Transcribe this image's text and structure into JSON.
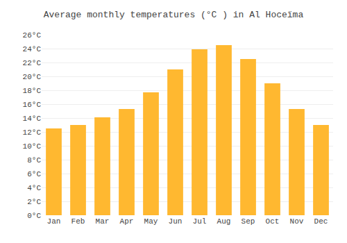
{
  "chart_data": {
    "type": "bar",
    "title": "Average monthly temperatures (°C ) in Al Hoceïma",
    "categories": [
      "Jan",
      "Feb",
      "Mar",
      "Apr",
      "May",
      "Jun",
      "Jul",
      "Aug",
      "Sep",
      "Oct",
      "Nov",
      "Dec"
    ],
    "values": [
      12.5,
      13.0,
      14.1,
      15.3,
      17.7,
      21.0,
      23.9,
      24.5,
      22.5,
      19.0,
      15.3,
      13.0
    ],
    "color": "#FFB830",
    "ylim": [
      0,
      26
    ],
    "yticks": [
      {
        "value": 0,
        "label": "0°C"
      },
      {
        "value": 2,
        "label": "2°C"
      },
      {
        "value": 4,
        "label": "4°C"
      },
      {
        "value": 6,
        "label": "6°C"
      },
      {
        "value": 8,
        "label": "8°C"
      },
      {
        "value": 10,
        "label": "10°C"
      },
      {
        "value": 12,
        "label": "12°C"
      },
      {
        "value": 14,
        "label": "14°C"
      },
      {
        "value": 16,
        "label": "16°C"
      },
      {
        "value": 18,
        "label": "18°C"
      },
      {
        "value": 20,
        "label": "20°C"
      },
      {
        "value": 22,
        "label": "22°C"
      },
      {
        "value": 24,
        "label": "24°C"
      },
      {
        "value": 26,
        "label": "26°C"
      }
    ],
    "grid": true
  }
}
